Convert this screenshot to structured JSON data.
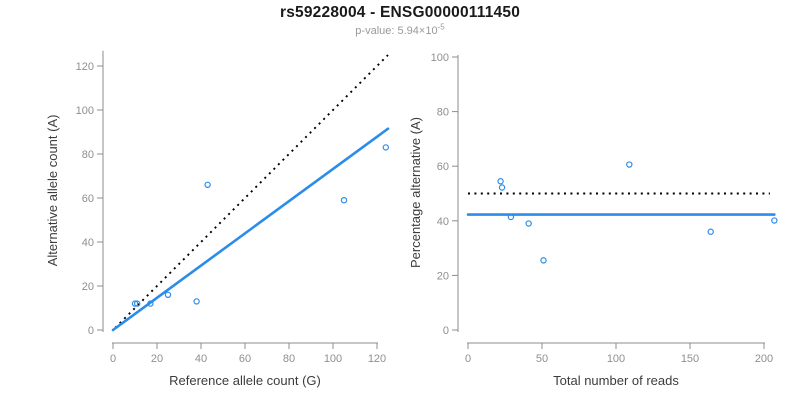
{
  "header": {
    "title": "rs59228004 - ENSG00000111450",
    "subtitle_prefix": "p-value: 5.94×10",
    "subtitle_exponent": "-5"
  },
  "colors": {
    "accent_blue": "#2B8CEA",
    "reference_black": "#000000",
    "axis_gray": "#8D8D8D",
    "tick_label_gray": "#8F8F8F",
    "axis_title_gray": "#3C3C3C",
    "subtitle_gray": "#999999"
  },
  "chart_data": [
    {
      "type": "scatter",
      "name": "allele-counts",
      "xlabel": "Reference allele count (G)",
      "ylabel": "Alternative allele count (A)",
      "xticks": [
        0,
        20,
        40,
        60,
        80,
        100,
        120
      ],
      "yticks": [
        0,
        20,
        40,
        60,
        80,
        100,
        120
      ],
      "xlim": [
        0,
        126
      ],
      "ylim": [
        0,
        126
      ],
      "grid": false,
      "legend": "none",
      "points": [
        [
          10,
          12
        ],
        [
          11,
          12
        ],
        [
          17,
          12
        ],
        [
          25,
          16
        ],
        [
          38,
          13
        ],
        [
          43,
          66
        ],
        [
          105,
          59
        ],
        [
          124,
          83
        ]
      ],
      "ref_line": {
        "note": "identity y=x, dotted",
        "x1": 1,
        "y1": 1,
        "x2": 125,
        "y2": 125,
        "style": "dotted"
      },
      "fit_line": {
        "note": "regression slope 0.732",
        "x1": 0,
        "y1": 0,
        "x2": 125,
        "y2": 91.5,
        "style": "solid"
      }
    },
    {
      "type": "scatter",
      "name": "percentage-vs-reads",
      "xlabel": "Total number of reads",
      "ylabel": "Percentage alternative (A)",
      "xticks": [
        0,
        50,
        100,
        150,
        200
      ],
      "yticks": [
        0,
        20,
        40,
        60,
        80,
        100
      ],
      "xlim": [
        0,
        210
      ],
      "ylim": [
        0,
        100
      ],
      "grid": false,
      "legend": "none",
      "points": [
        [
          22,
          54.5
        ],
        [
          23,
          52.2
        ],
        [
          29,
          41.4
        ],
        [
          41,
          39
        ],
        [
          51,
          25.5
        ],
        [
          109,
          60.6
        ],
        [
          164,
          36
        ],
        [
          207,
          40.1
        ]
      ],
      "ref_line": {
        "note": "50% dotted reference",
        "x1": 0,
        "y1": 50,
        "x2": 204,
        "y2": 50,
        "style": "dotted"
      },
      "fit_line": {
        "note": "mean 42.3%",
        "x1": 0,
        "y1": 42.3,
        "x2": 207,
        "y2": 42.3,
        "style": "solid"
      }
    }
  ]
}
